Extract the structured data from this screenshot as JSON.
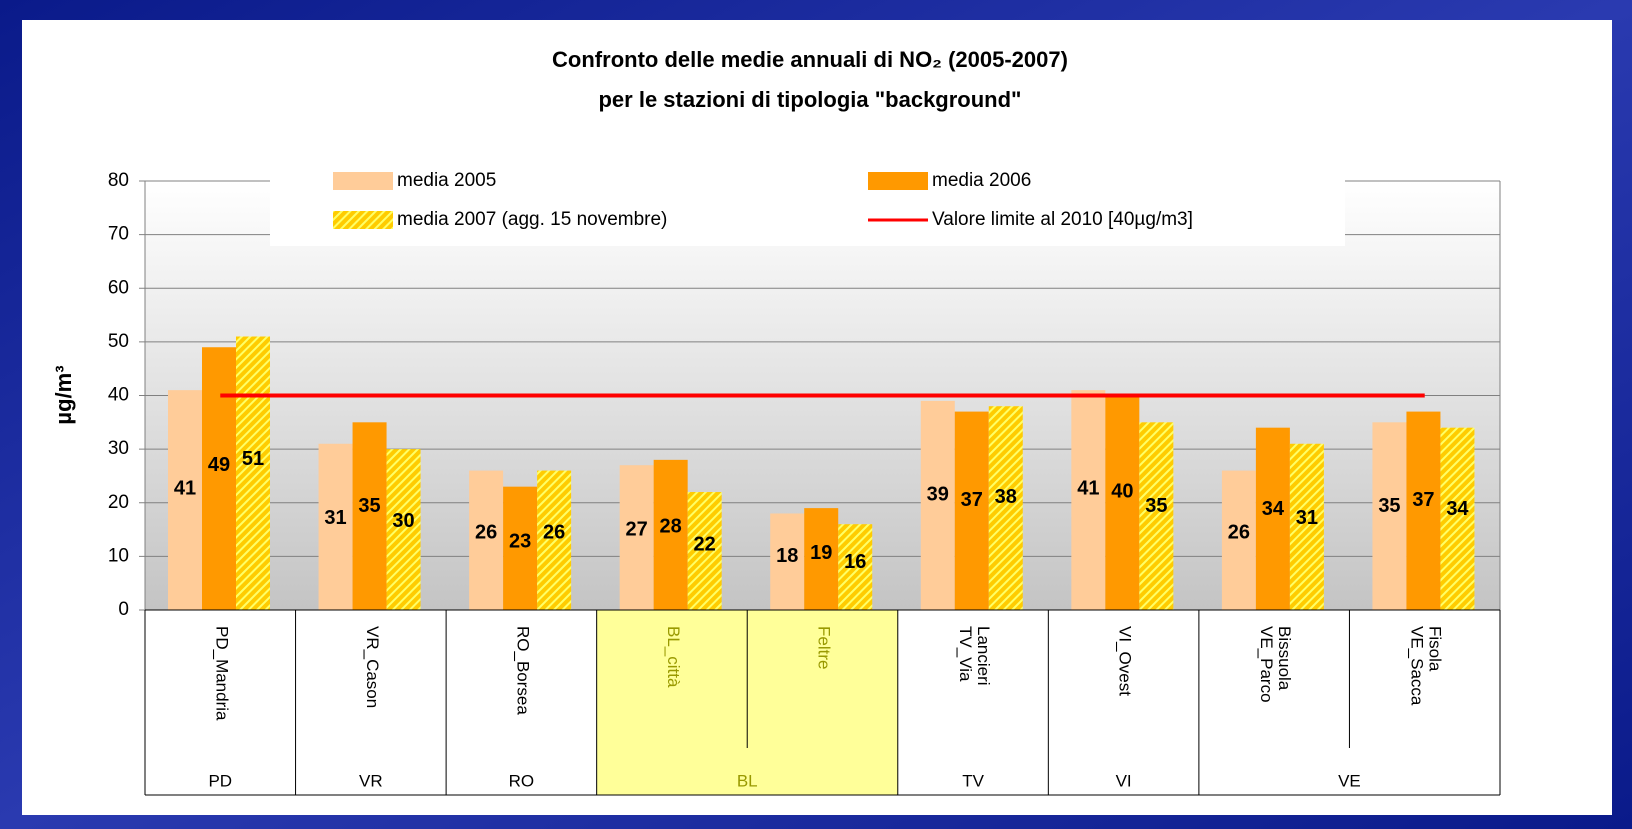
{
  "chart_data": {
    "type": "bar",
    "title": "Confronto delle medie annuali di NO₂ (2005-2007)",
    "subtitle": "per le stazioni di tipologia \"background\"",
    "ylabel": "µg/m³",
    "categories": [
      [
        "PD_Mandria"
      ],
      [
        "VR_Cason"
      ],
      [
        "RO_Borsea"
      ],
      [
        "BL_città"
      ],
      [
        "Feltre"
      ],
      [
        "TV_Via",
        "Lancieri"
      ],
      [
        "VI_Ovest"
      ],
      [
        "VE_Parco",
        "Bissuola"
      ],
      [
        "VE_Sacca",
        "Fisola"
      ]
    ],
    "groups": [
      "PD",
      "VR",
      "RO",
      "BL",
      null,
      "TV",
      "VI",
      "VE",
      null
    ],
    "highlight_group": "BL",
    "highlight_color": "#ffff99",
    "highlight_text_color": "#999900",
    "series": [
      {
        "name": "media 2005",
        "color": "#ffcc99",
        "values": [
          41,
          31,
          26,
          27,
          18,
          39,
          41,
          26,
          35
        ]
      },
      {
        "name": "media 2006",
        "color": "#ff9900",
        "values": [
          49,
          35,
          23,
          28,
          19,
          37,
          40,
          34,
          37
        ]
      },
      {
        "name": "media 2007 (agg. 15 novembre)",
        "color": "#ffcc00",
        "pattern": "hatch",
        "values": [
          51,
          30,
          26,
          22,
          16,
          38,
          35,
          31,
          34
        ]
      },
      {
        "name": "Valore limite al 2010 [40µg/m3]",
        "color": "#ff0000",
        "kind": "line",
        "values": [
          40,
          40,
          40,
          40,
          40,
          40,
          40,
          40,
          40
        ]
      }
    ],
    "ylim": [
      0,
      80
    ],
    "yticks": [
      0,
      10,
      20,
      30,
      40,
      50,
      60,
      70,
      80
    ],
    "grid": true
  }
}
